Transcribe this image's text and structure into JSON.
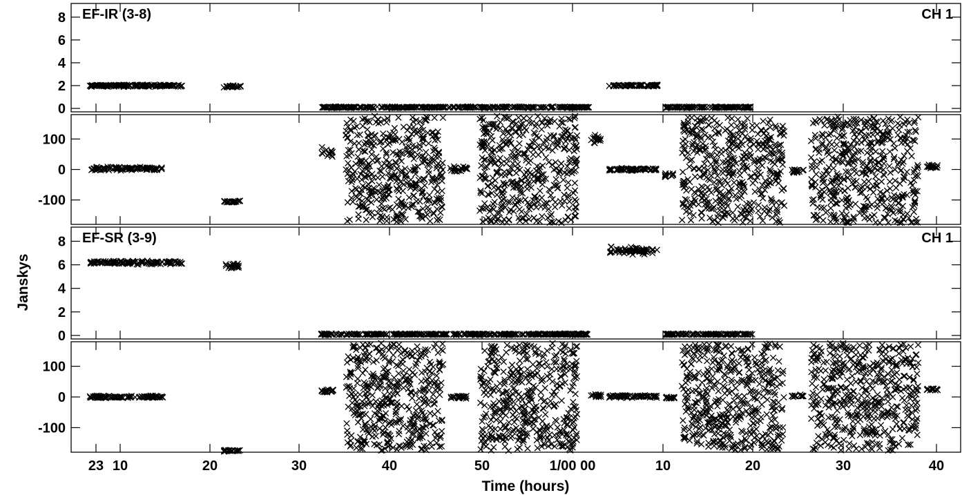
{
  "chart_data": {
    "type": "scatter",
    "marker": "x",
    "ylabel": "Janskys",
    "xlabel": "Time (hours)",
    "x_range_hours": [
      22.5,
      64.5
    ],
    "x_ticks": [
      {
        "x": 23,
        "label": "23"
      },
      {
        "x": 24.167,
        "label": "10"
      },
      {
        "x": 24.333,
        "label": "20"
      },
      {
        "x": 24.5,
        "label": "30"
      },
      {
        "x": 24.667,
        "label": "40"
      },
      {
        "x": 24.833,
        "label": "50"
      },
      {
        "x": 25,
        "label": "1/00 00"
      },
      {
        "x": 25.167,
        "label": "10"
      },
      {
        "x": 25.333,
        "label": "20"
      },
      {
        "x": 25.5,
        "label": "30"
      },
      {
        "x": 25.667,
        "label": "40"
      }
    ],
    "panels": [
      {
        "baseline": "EF-IR (3-8)",
        "channel": "CH 1",
        "amplitude": {
          "ylim": [
            -0.3,
            9.2
          ],
          "yticks": [
            0,
            2,
            4,
            6,
            8
          ],
          "groups": [
            {
              "x": [
                23.0,
                23.38
              ],
              "y": 2.0,
              "spread": 0.12
            },
            {
              "x": [
                23.55,
                23.62
              ],
              "y": 1.9,
              "spread": 0.15
            },
            {
              "x": [
                25.13,
                25.33
              ],
              "y": 2.0,
              "spread": 0.12
            },
            {
              "x": [
                23.95,
                25.05
              ],
              "y": 0.1,
              "spread": 0.08
            },
            {
              "x": [
                25.36,
                25.72
              ],
              "y": 0.1,
              "spread": 0.08
            }
          ]
        },
        "phase": {
          "ylim": [
            -180,
            180
          ],
          "yticks": [
            100,
            0,
            -100
          ],
          "groups": [
            {
              "x": [
                23.0,
                23.3
              ],
              "y": 3,
              "spread": 8
            },
            {
              "x": [
                23.55,
                23.62
              ],
              "y": -105,
              "spread": 4
            },
            {
              "x": [
                23.95,
                24.0
              ],
              "y": 55,
              "spread": 20
            },
            {
              "x": [
                24.05,
                24.45
              ],
              "y": 0,
              "spread": 175
            },
            {
              "x": [
                24.48,
                24.55
              ],
              "y": 0,
              "spread": 15
            },
            {
              "x": [
                24.6,
                25.0
              ],
              "y": 0,
              "spread": 175
            },
            {
              "x": [
                25.05,
                25.1
              ],
              "y": 100,
              "spread": 20
            },
            {
              "x": [
                25.13,
                25.33
              ],
              "y": 0,
              "spread": 6
            },
            {
              "x": [
                25.36,
                25.4
              ],
              "y": -20,
              "spread": 15
            },
            {
              "x": [
                25.43,
                25.85
              ],
              "y": 0,
              "spread": 175
            },
            {
              "x": [
                25.88,
                25.93
              ],
              "y": -5,
              "spread": 12
            },
            {
              "x": [
                25.96,
                26.4
              ],
              "y": 0,
              "spread": 175
            },
            {
              "x": [
                26.43,
                26.48
              ],
              "y": 10,
              "spread": 12
            }
          ]
        }
      },
      {
        "baseline": "EF-SR (3-9)",
        "channel": "CH 1",
        "amplitude": {
          "ylim": [
            -0.3,
            9.2
          ],
          "yticks": [
            0,
            2,
            4,
            6,
            8
          ],
          "groups": [
            {
              "x": [
                23.0,
                23.38
              ],
              "y": 6.2,
              "spread": 0.2
            },
            {
              "x": [
                23.55,
                23.62
              ],
              "y": 5.9,
              "spread": 0.3
            },
            {
              "x": [
                25.13,
                25.33
              ],
              "y": 7.2,
              "spread": 0.4
            },
            {
              "x": [
                23.95,
                25.05
              ],
              "y": 0.1,
              "spread": 0.08
            },
            {
              "x": [
                25.36,
                25.72
              ],
              "y": 0.1,
              "spread": 0.08
            }
          ]
        },
        "phase": {
          "ylim": [
            -180,
            180
          ],
          "yticks": [
            100,
            0,
            -100
          ],
          "groups": [
            {
              "x": [
                23.0,
                23.3
              ],
              "y": 0,
              "spread": 5
            },
            {
              "x": [
                23.55,
                23.62
              ],
              "y": -175,
              "spread": 4
            },
            {
              "x": [
                23.95,
                24.0
              ],
              "y": 20,
              "spread": 8
            },
            {
              "x": [
                24.05,
                24.45
              ],
              "y": 0,
              "spread": 175
            },
            {
              "x": [
                24.48,
                24.55
              ],
              "y": 0,
              "spread": 8
            },
            {
              "x": [
                24.6,
                25.0
              ],
              "y": 0,
              "spread": 175
            },
            {
              "x": [
                25.05,
                25.1
              ],
              "y": 5,
              "spread": 8
            },
            {
              "x": [
                25.13,
                25.33
              ],
              "y": 2,
              "spread": 6
            },
            {
              "x": [
                25.36,
                25.4
              ],
              "y": -2,
              "spread": 6
            },
            {
              "x": [
                25.43,
                25.85
              ],
              "y": 0,
              "spread": 175
            },
            {
              "x": [
                25.88,
                25.93
              ],
              "y": 3,
              "spread": 6
            },
            {
              "x": [
                25.96,
                26.4
              ],
              "y": 0,
              "spread": 175
            },
            {
              "x": [
                26.43,
                26.48
              ],
              "y": 25,
              "spread": 8
            }
          ]
        }
      }
    ]
  }
}
